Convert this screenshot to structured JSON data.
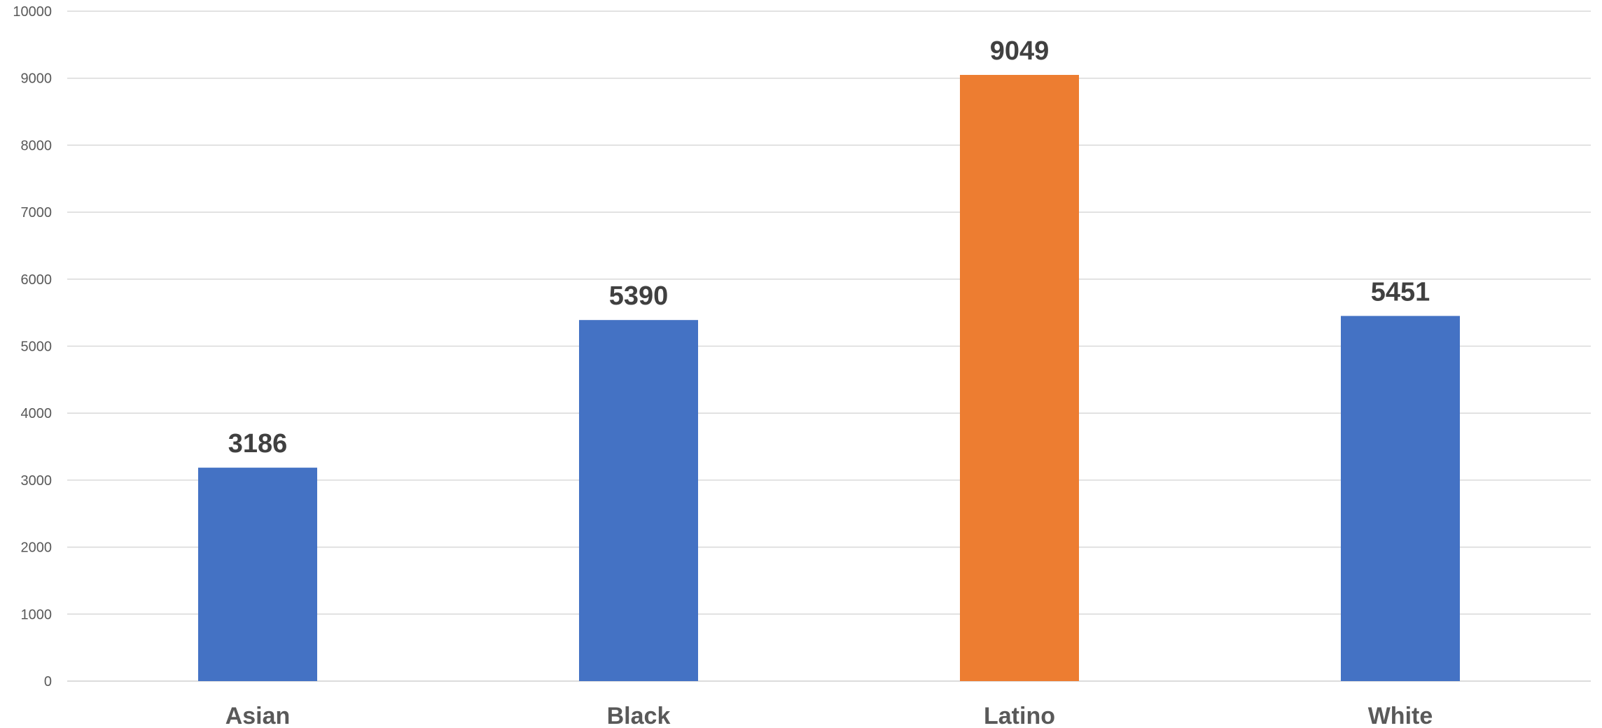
{
  "chart_data": {
    "type": "bar",
    "title": "",
    "xlabel": "",
    "ylabel": "",
    "categories": [
      "Asian",
      "Black",
      "Latino",
      "White"
    ],
    "values": [
      3186,
      5390,
      9049,
      5451
    ],
    "data_labels": [
      "3186",
      "5390",
      "9049",
      "5451"
    ],
    "bar_colors": [
      "#4472c4",
      "#4472c4",
      "#ed7d31",
      "#4472c4"
    ],
    "ylim": [
      0,
      10000
    ],
    "y_ticks": [
      0,
      1000,
      2000,
      3000,
      4000,
      5000,
      6000,
      7000,
      8000,
      9000,
      10000
    ],
    "grid": true,
    "legend": "none"
  }
}
